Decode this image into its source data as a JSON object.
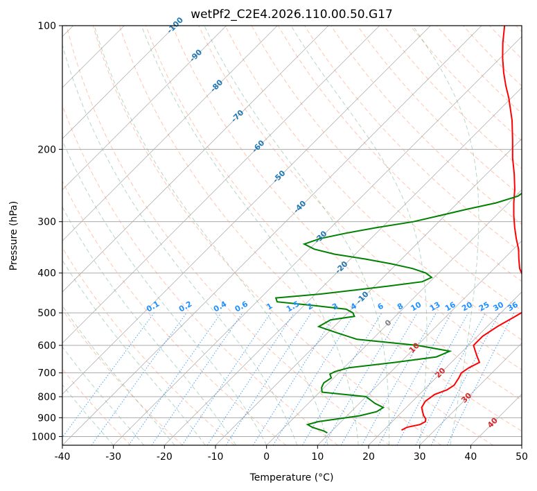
{
  "chart_data": {
    "type": "line",
    "title": "wetPf2_C2E4.2026.110.00.50.G17",
    "xlabel": "Temperature (°C)",
    "ylabel": "Pressure (hPa)",
    "xlim": [
      -40,
      50
    ],
    "ylim": [
      1050,
      100
    ],
    "y_scale": "log",
    "x_ticks": [
      -40,
      -30,
      -20,
      -10,
      0,
      10,
      20,
      30,
      40,
      50
    ],
    "y_ticks": [
      100,
      200,
      300,
      400,
      500,
      600,
      700,
      800,
      900,
      1000
    ],
    "grid": true,
    "colors": {
      "temperature": "#ff0000",
      "dewpoint": "#008000",
      "dry_adiabat": "#ff7f50",
      "moist_adiabat": "#2e8b57",
      "mixing_ratio": "#1e90ff",
      "isotherm_label_cold": "#1f77b4",
      "isotherm_label_zero": "#808080",
      "isotherm_label_warm": "#d62728"
    },
    "isotherm_labels": [
      {
        "t": -100,
        "text": "-100"
      },
      {
        "t": -90,
        "text": "-90"
      },
      {
        "t": -80,
        "text": "-80"
      },
      {
        "t": -70,
        "text": "-70"
      },
      {
        "t": -60,
        "text": "-60"
      },
      {
        "t": -50,
        "text": "-50"
      },
      {
        "t": -40,
        "text": "-40"
      },
      {
        "t": -30,
        "text": "-30"
      },
      {
        "t": -20,
        "text": "-20"
      },
      {
        "t": -10,
        "text": "-10"
      },
      {
        "t": 0,
        "text": "0"
      },
      {
        "t": 10,
        "text": "10"
      },
      {
        "t": 20,
        "text": "20"
      },
      {
        "t": 30,
        "text": "30"
      },
      {
        "t": 40,
        "text": "40"
      }
    ],
    "mixing_ratio_labels": [
      "0.1",
      "0.2",
      "0.4",
      "0.6",
      "1",
      "1.5",
      "2",
      "3",
      "4",
      "6",
      "8",
      "10",
      "13",
      "16",
      "20",
      "25",
      "30",
      "36"
    ],
    "series": [
      {
        "key": "temperature",
        "p": [
          965,
          950,
          935,
          920,
          905,
          890,
          870,
          850,
          820,
          790,
          770,
          750,
          720,
          700,
          680,
          660,
          640,
          620,
          600,
          570,
          540,
          510,
          490,
          470,
          450,
          430,
          410,
          390,
          370,
          350,
          330,
          310,
          290,
          270,
          250,
          230,
          210,
          190,
          170,
          150,
          140,
          130,
          120,
          110,
          100
        ],
        "t": [
          23.5,
          24,
          26,
          26.5,
          26,
          25,
          24,
          23,
          22.5,
          23,
          24.5,
          25,
          24.5,
          24,
          24.5,
          25.5,
          24,
          22.5,
          21,
          21,
          22,
          23.5,
          24.5,
          24.5,
          23,
          20.5,
          17.5,
          15,
          13,
          11,
          8.5,
          6,
          3.5,
          1,
          -1.5,
          -4.5,
          -8,
          -11.5,
          -15.5,
          -20.5,
          -23.5,
          -26.5,
          -29.5,
          -32.5,
          -35.5
        ]
      },
      {
        "key": "dewpoint",
        "p": [
          980,
          970,
          960,
          950,
          935,
          920,
          905,
          890,
          870,
          850,
          830,
          800,
          780,
          760,
          740,
          720,
          705,
          695,
          680,
          660,
          640,
          620,
          600,
          580,
          560,
          540,
          520,
          510,
          500,
          490,
          480,
          470,
          460,
          450,
          440,
          430,
          420,
          410,
          400,
          390,
          380,
          370,
          360,
          350,
          340,
          330,
          320,
          310,
          300,
          290,
          280,
          270,
          260,
          250,
          240,
          230,
          220,
          210,
          200,
          190,
          180,
          170,
          160,
          150,
          140,
          130,
          120,
          110,
          100
        ],
        "t": [
          9.5,
          8.5,
          7,
          5.5,
          4,
          5.5,
          9,
          12.5,
          15,
          15.5,
          13,
          10,
          0.5,
          -0.5,
          -1,
          -0.5,
          -1.5,
          -1,
          1,
          9,
          16,
          17.5,
          10,
          -3,
          -8,
          -13,
          -12,
          -8,
          -9,
          -11,
          -18,
          -26,
          -27,
          -19,
          -13,
          -7,
          -1.5,
          -0.5,
          -2.5,
          -6,
          -11,
          -17,
          -24,
          -29,
          -32,
          -30,
          -26,
          -21,
          -15,
          -11,
          -7,
          -2.5,
          0.5,
          1,
          1,
          0.5,
          0.5,
          0,
          -0.5,
          -1,
          -2,
          -3,
          -4,
          -4.5,
          -4,
          -3,
          -2.5,
          -2,
          -1
        ]
      }
    ]
  }
}
